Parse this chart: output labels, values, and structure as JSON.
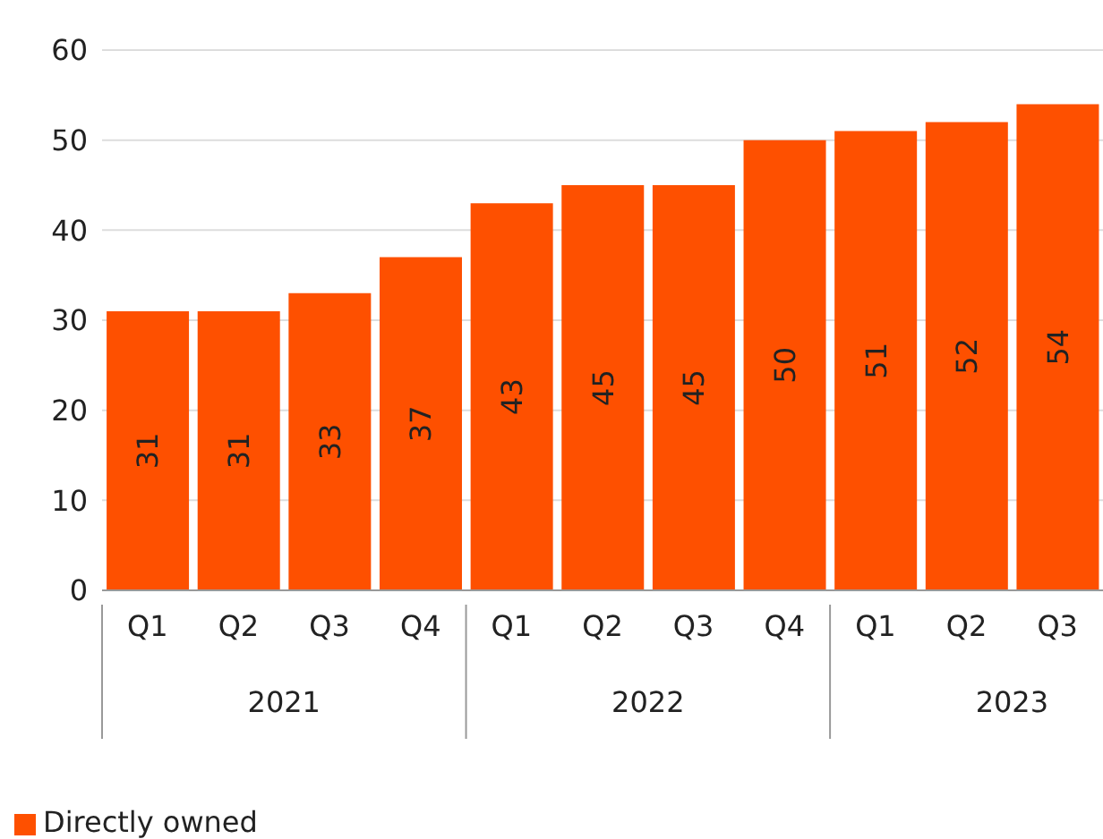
{
  "chart_data": {
    "type": "bar",
    "categories": [
      "Q1",
      "Q2",
      "Q3",
      "Q4",
      "Q1",
      "Q2",
      "Q3",
      "Q4",
      "Q1",
      "Q2",
      "Q3"
    ],
    "series": [
      {
        "name": "Directly owned",
        "color": "#fe5000",
        "values": [
          31,
          31,
          33,
          37,
          43,
          45,
          45,
          50,
          51,
          52,
          54
        ]
      }
    ],
    "ylim": [
      0,
      60
    ],
    "yticks": [
      0,
      10,
      20,
      30,
      40,
      50,
      60
    ],
    "grid": "y",
    "legend": "bottom left",
    "data_labels": true,
    "annotations": [
      "2021",
      "2022",
      "2023"
    ]
  }
}
